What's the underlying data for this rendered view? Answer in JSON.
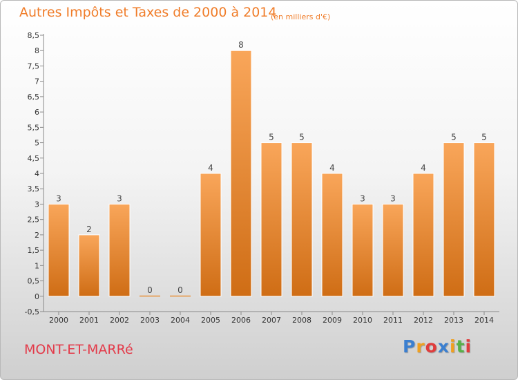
{
  "chart_data": {
    "type": "bar",
    "title": "Autres Impôts et Taxes de 2000 à 2014",
    "subtitle": "(en milliers d'€)",
    "categories": [
      "2000",
      "2001",
      "2002",
      "2003",
      "2004",
      "2005",
      "2006",
      "2007",
      "2008",
      "2009",
      "2010",
      "2011",
      "2012",
      "2013",
      "2014"
    ],
    "values": [
      3,
      2,
      3,
      0,
      0,
      4,
      8,
      5,
      5,
      4,
      3,
      3,
      4,
      5,
      5
    ],
    "data_labels": [
      "3",
      "2",
      "3",
      "0",
      "0",
      "4",
      "8",
      "5",
      "5",
      "4",
      "3",
      "3",
      "4",
      "5",
      "5"
    ],
    "yticks": [
      -0.5,
      0,
      0.5,
      1,
      1.5,
      2,
      2.5,
      3,
      3.5,
      4,
      4.5,
      5,
      5.5,
      6,
      6.5,
      7,
      7.5,
      8,
      8.5
    ],
    "ytick_labels": [
      "-0,5",
      "0",
      "0,5",
      "1",
      "1,5",
      "2",
      "2,5",
      "3",
      "3,5",
      "4",
      "4,5",
      "5",
      "5,5",
      "6",
      "6,5",
      "7",
      "7,5",
      "8",
      "8,5"
    ],
    "ylim": [
      -0.5,
      8.5
    ],
    "xlabel": "",
    "ylabel": "",
    "grid": false,
    "bar_color": "#f08a2c"
  },
  "footer": {
    "commune": "MONT-ET-MARRé",
    "logo_letters": [
      "P",
      "r",
      "o",
      "x",
      "i",
      "t",
      "i"
    ],
    "logo_colors": [
      "#3b7fd0",
      "#f0a020",
      "#e03c3c",
      "#3b7fd0",
      "#f0a020",
      "#58b048",
      "#e03c3c"
    ]
  }
}
